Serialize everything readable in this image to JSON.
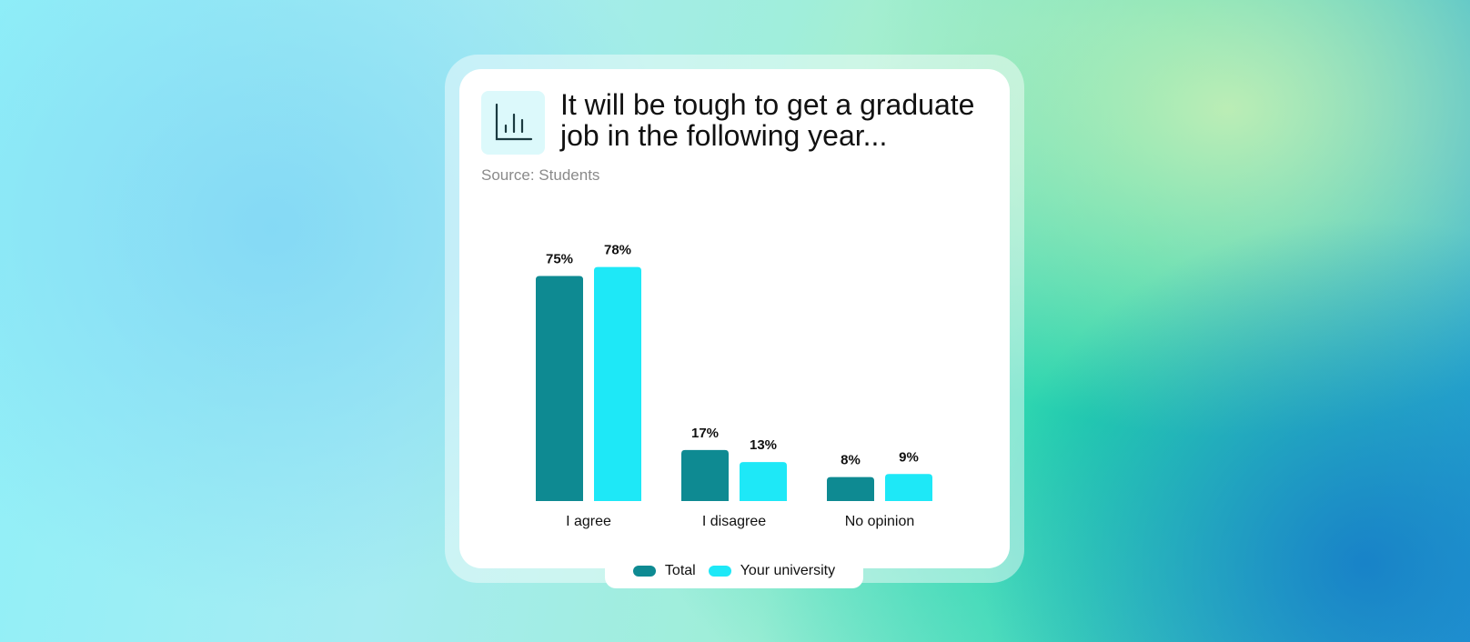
{
  "chart_data": {
    "type": "bar",
    "title": "It will be tough to get a graduate job in the following year...",
    "subtitle": "Source: Students",
    "categories": [
      "I agree",
      "I disagree",
      "No opinion"
    ],
    "series": [
      {
        "name": "Total",
        "color": "#0e8a92",
        "values": [
          75,
          17,
          8
        ],
        "value_labels": [
          "75%",
          "17%",
          "8%"
        ]
      },
      {
        "name": "Your university",
        "color": "#1ee8f7",
        "values": [
          78,
          13,
          9
        ],
        "value_labels": [
          "78%",
          "13%",
          "9%"
        ]
      }
    ]
  }
}
